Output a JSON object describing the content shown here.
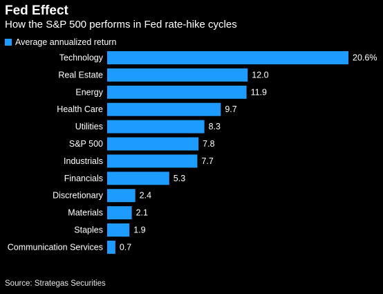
{
  "header": {
    "title": "Fed Effect",
    "subtitle": "How the S&P 500 performs in Fed rate-hike cycles"
  },
  "legend": {
    "label": "Average annualized return",
    "color": "#1e9bff"
  },
  "source": "Source: Strategas Securities",
  "chart_data": {
    "type": "bar",
    "orientation": "horizontal",
    "categories": [
      "Technology",
      "Real Estate",
      "Energy",
      "Health Care",
      "Utilities",
      "S&P 500",
      "Industrials",
      "Financials",
      "Discretionary",
      "Materials",
      "Staples",
      "Communication Services"
    ],
    "series": [
      {
        "name": "Average annualized return",
        "values": [
          20.6,
          12.0,
          11.9,
          9.7,
          8.3,
          7.8,
          7.7,
          5.3,
          2.4,
          2.1,
          1.9,
          0.7
        ],
        "labels": [
          "20.6%",
          "12.0",
          "11.9",
          "9.7",
          "8.3",
          "7.8",
          "7.7",
          "5.3",
          "2.4",
          "2.1",
          "1.9",
          "0.7"
        ]
      }
    ],
    "title": "Fed Effect",
    "subtitle": "How the S&P 500 performs in Fed rate-hike cycles",
    "xlim": [
      0,
      20.6
    ],
    "grid": false,
    "legend_position": "top-left",
    "bar_color": "#1e9bff"
  }
}
